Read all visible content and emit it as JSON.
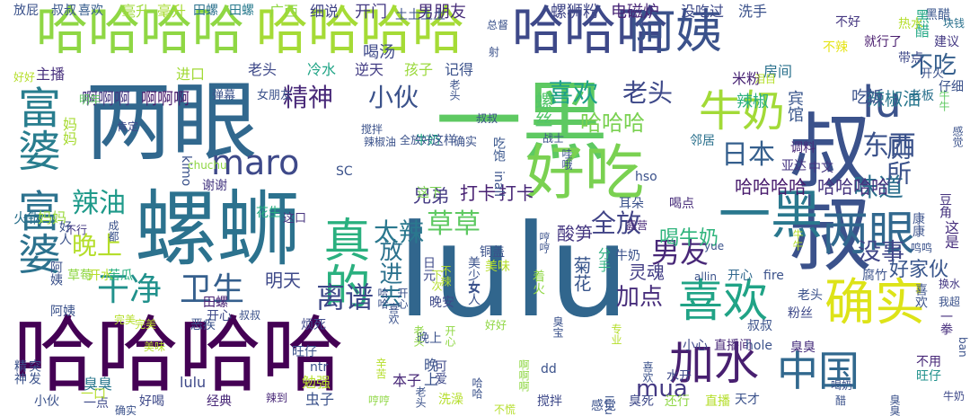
{
  "words": [
    {
      "text": "lulu",
      "color": "#31668d"
    },
    {
      "text": "哈哈哈哈",
      "color": "#440154"
    },
    {
      "text": "两眼",
      "color": "#31688e"
    },
    {
      "text": "一黑",
      "color": "#5ec962"
    },
    {
      "text": "叔叔",
      "color": "#3b528b"
    },
    {
      "text": "哈哈哈哈",
      "color": "#8fd744"
    },
    {
      "text": "哈哈哈哈",
      "color": "#a5db36"
    },
    {
      "text": "哈哈哈",
      "color": "#3e4989"
    },
    {
      "text": "阿姨",
      "color": "#3b528b"
    },
    {
      "text": "螺蛳",
      "color": "#2c728e"
    },
    {
      "text": "富婆",
      "color": "#287d8e"
    },
    {
      "text": "富婆",
      "color": "#2c728e"
    },
    {
      "text": "好吃",
      "color": "#7ad151"
    },
    {
      "text": "lu",
      "color": "#3b528b"
    },
    {
      "text": "一黑",
      "color": "#2a788e"
    },
    {
      "text": "两眼",
      "color": "#31688e"
    },
    {
      "text": "真的",
      "color": "#2ab07f"
    },
    {
      "text": "牛奶",
      "color": "#a2da37"
    },
    {
      "text": "确实",
      "color": "#dde318"
    },
    {
      "text": "喜欢",
      "color": "#20a386"
    },
    {
      "text": "加水",
      "color": "#481f70"
    },
    {
      "text": "中国",
      "color": "#31688e"
    },
    {
      "text": "maro",
      "color": "#3e4989"
    },
    {
      "text": "干净",
      "color": "#21918c"
    },
    {
      "text": "卫生",
      "color": "#355f8d"
    },
    {
      "text": "辣油",
      "color": "#1f9a8a"
    },
    {
      "text": "离谱",
      "color": "#3e4989"
    },
    {
      "text": "男友",
      "color": "#482878"
    },
    {
      "text": "草草",
      "color": "#5ec962"
    },
    {
      "text": "东西",
      "color": "#3b528b"
    },
    {
      "text": "日本",
      "color": "#355f8d"
    },
    {
      "text": "精神",
      "color": "#482878"
    },
    {
      "text": "小伙",
      "color": "#3b528b"
    },
    {
      "text": "喜欢",
      "color": "#1fa088"
    },
    {
      "text": "老头",
      "color": "#3e4989"
    },
    {
      "text": "味道",
      "color": "#2d708e"
    },
    {
      "text": "厕所",
      "color": "#3b528b"
    },
    {
      "text": "哈哈哈",
      "color": "#7ad151"
    },
    {
      "text": "太辣",
      "color": "#2a788e"
    },
    {
      "text": "晚上",
      "color": "#b5de2b"
    },
    {
      "text": "全放",
      "color": "#414487"
    },
    {
      "text": "放进去",
      "color": "#2c728e"
    },
    {
      "text": "mua",
      "color": "#443983"
    },
    {
      "text": "加点",
      "color": "#472d7b"
    },
    {
      "text": "没事",
      "color": "#404688"
    },
    {
      "text": "好家伙",
      "color": "#39568c"
    },
    {
      "text": "不吃",
      "color": "#355f8d"
    },
    {
      "text": "哈哈哈哈",
      "color": "#481b6d"
    },
    {
      "text": "哈哈哈哈",
      "color": "#46337e"
    },
    {
      "text": "打卡",
      "color": "#482173"
    },
    {
      "text": "打卡",
      "color": "#482878"
    },
    {
      "text": "喝牛奶",
      "color": "#2fb47c"
    },
    {
      "text": "酸笋",
      "color": "#453781"
    },
    {
      "text": "菊花",
      "color": "#39568c"
    },
    {
      "text": "灵魂",
      "color": "#433e85"
    },
    {
      "text": "明天",
      "color": "#3e4989"
    },
    {
      "text": "兄弟",
      "color": "#443a83"
    },
    {
      "text": "辣椒油",
      "color": "#2a788e"
    },
    {
      "text": "螺丝",
      "color": "#52c569"
    },
    {
      "text": "喝汤",
      "color": "#3e4989"
    },
    {
      "text": "开门",
      "color": "#443a83"
    },
    {
      "text": "男朋友",
      "color": "#472c7a"
    },
    {
      "text": "细说",
      "color": "#414487"
    },
    {
      "text": "广西",
      "color": "#8fd744"
    },
    {
      "text": "螺狮粉",
      "color": "#404688"
    },
    {
      "text": "电磁炉",
      "color": "#482677"
    },
    {
      "text": "没吃过",
      "color": "#3e4989"
    },
    {
      "text": "洗手",
      "color": "#3b528b"
    },
    {
      "text": "毫升",
      "color": "#9fda3a"
    },
    {
      "text": "毫升",
      "color": "#a8db34"
    },
    {
      "text": "喜欢",
      "color": "#365d8d"
    },
    {
      "text": "叔叔",
      "color": "#39568c"
    },
    {
      "text": "放屁",
      "color": "#3b528b"
    },
    {
      "text": "田螺",
      "color": "#2c728e"
    },
    {
      "text": "田螺",
      "color": "#297b8e"
    },
    {
      "text": "老头",
      "color": "#3e4989"
    },
    {
      "text": "冷水",
      "color": "#20a486"
    },
    {
      "text": "逆天",
      "color": "#433d84"
    },
    {
      "text": "孩子",
      "color": "#9bd93c"
    },
    {
      "text": "记得",
      "color": "#3b528b"
    },
    {
      "text": "主播",
      "color": "#472f7d"
    },
    {
      "text": "进口",
      "color": "#a2da37"
    },
    {
      "text": "啊啊啊",
      "color": "#453781"
    },
    {
      "text": "啊啊啊",
      "color": "#481b6d"
    },
    {
      "text": "米粉",
      "color": "#482374"
    },
    {
      "text": "辣椒",
      "color": "#2ab07f"
    },
    {
      "text": "房间",
      "color": "#2c728e"
    },
    {
      "text": "宾馆",
      "color": "#39568c"
    },
    {
      "text": "吃饭",
      "color": "#3b528b"
    },
    {
      "text": "建议",
      "color": "#443983"
    },
    {
      "text": "不辣",
      "color": "#e5e419"
    },
    {
      "text": "就行了",
      "color": "#481b6d"
    },
    {
      "text": "不好",
      "color": "#453781"
    },
    {
      "text": "黑醋",
      "color": "#39568c"
    },
    {
      "text": "黑醋",
      "color": "#22a785"
    },
    {
      "text": "带点",
      "color": "#3e4989"
    },
    {
      "text": "牛牛",
      "color": "#5ec962"
    },
    {
      "text": "开火",
      "color": "#3b528b"
    },
    {
      "text": "老板",
      "color": "#2c728e"
    },
    {
      "text": "弹幕",
      "color": "#3b528b"
    },
    {
      "text": "女朋友",
      "color": "#3b528b"
    },
    {
      "text": "邻居",
      "color": "#2c728e"
    },
    {
      "text": "调料",
      "color": "#482878"
    },
    {
      "text": "中文",
      "color": "#453781"
    },
    {
      "text": "亚达",
      "color": "#463480"
    },
    {
      "text": "这口",
      "color": "#46337e"
    },
    {
      "text": "花生",
      "color": "#27ad81"
    },
    {
      "text": "谢谢",
      "color": "#453781"
    },
    {
      "text": "不行",
      "color": "#443983"
    },
    {
      "text": "成都",
      "color": "#3b528b"
    },
    {
      "text": "火锅",
      "color": "#2c728e"
    },
    {
      "text": "妈妈",
      "color": "#9bd93c"
    },
    {
      "text": "妈妈",
      "color": "#a8db34"
    },
    {
      "text": "好好",
      "color": "#b5de2b"
    },
    {
      "text": "明年",
      "color": "#5ec962"
    },
    {
      "text": "肯定",
      "color": "#3e4989"
    },
    {
      "text": "吃饱",
      "color": "#39568c"
    },
    {
      "text": "牛奶",
      "color": "#22a785"
    },
    {
      "text": "这样",
      "color": "#3b528b"
    },
    {
      "text": "这下",
      "color": "#7ad151"
    },
    {
      "text": "hso",
      "color": "#3b528b"
    },
    {
      "text": "耳朵",
      "color": "#3b528b"
    },
    {
      "text": "喝点",
      "color": "#472c7a"
    },
    {
      "text": "牛奶",
      "color": "#3b528b"
    },
    {
      "text": "分手",
      "color": "#2ab07f"
    },
    {
      "text": "着火",
      "color": "#8fd744"
    },
    {
      "text": "腐竹",
      "color": "#3b528b"
    },
    {
      "text": "这是",
      "color": "#472f7d"
    },
    {
      "text": "换水",
      "color": "#443983"
    },
    {
      "text": "豆角",
      "color": "#46337e"
    },
    {
      "text": "块钱",
      "color": "#2c728e"
    },
    {
      "text": "仔细",
      "color": "#3b528b"
    },
    {
      "text": "开心",
      "color": "#31688e"
    },
    {
      "text": "fire",
      "color": "#3b528b"
    },
    {
      "text": "老头",
      "color": "#3b528b"
    },
    {
      "text": "喜欢",
      "color": "#3b528b"
    },
    {
      "text": "我超",
      "color": "#3b528b"
    },
    {
      "text": "一拳",
      "color": "#472f7d"
    },
    {
      "text": "粉丝",
      "color": "#3e4989"
    },
    {
      "text": "叔叔",
      "color": "#3b528b"
    },
    {
      "text": "小心",
      "color": "#3e4989"
    },
    {
      "text": "直播间",
      "color": "#482878"
    },
    {
      "text": "hole",
      "color": "#3b528b"
    },
    {
      "text": "臭臭",
      "color": "#472f7d"
    },
    {
      "text": "旺仔",
      "color": "#21918c"
    },
    {
      "text": "牛奶",
      "color": "#3e4989"
    },
    {
      "text": "不用",
      "color": "#482878"
    },
    {
      "text": "水开",
      "color": "#3e4989"
    },
    {
      "text": "ban",
      "color": "#3b528b"
    },
    {
      "text": "田螺",
      "color": "#482173"
    },
    {
      "text": "开心",
      "color": "#3e4989"
    },
    {
      "text": "叔叔",
      "color": "#3b528b"
    },
    {
      "text": "烦死",
      "color": "#3e4989"
    },
    {
      "text": "旺仔",
      "color": "#3b528b"
    },
    {
      "text": "ntr",
      "color": "#3b528b"
    },
    {
      "text": "勉强",
      "color": "#b5de2b"
    },
    {
      "text": "虫子",
      "color": "#3b528b"
    },
    {
      "text": "本子",
      "color": "#482878"
    },
    {
      "text": "臭臭",
      "color": "#2a788e"
    },
    {
      "text": "lulu",
      "color": "#3e4989"
    },
    {
      "text": "经典",
      "color": "#482878"
    },
    {
      "text": "一点",
      "color": "#3e4989"
    },
    {
      "text": "一口",
      "color": "#b5de2b"
    },
    {
      "text": "好喝",
      "color": "#3e4989"
    },
    {
      "text": "洗澡",
      "color": "#b5de2b"
    },
    {
      "text": "搅拌",
      "color": "#3e4989"
    },
    {
      "text": "感觉",
      "color": "#3b528b"
    },
    {
      "text": "臭死",
      "color": "#3e4989"
    },
    {
      "text": "还行",
      "color": "#8fd744"
    },
    {
      "text": "直播",
      "color": "#b5de2b"
    },
    {
      "text": "天才",
      "color": "#3b528b"
    },
    {
      "text": "小伙",
      "color": "#3b528b"
    },
    {
      "text": "精神",
      "color": "#3b528b"
    },
    {
      "text": "突发",
      "color": "#3b528b"
    },
    {
      "text": "恶疾",
      "color": "#3b528b"
    },
    {
      "text": "辣到",
      "color": "#482878"
    },
    {
      "text": "好人",
      "color": "#3b528b"
    },
    {
      "text": "阿姨",
      "color": "#3b528b"
    },
    {
      "text": "阿姨",
      "color": "#3b528b"
    },
    {
      "text": "草莓",
      "color": "#8fd744"
    },
    {
      "text": "开水",
      "color": "#b5de2b"
    },
    {
      "text": "苦瓜",
      "color": "#2ab07f"
    },
    {
      "text": "完美",
      "color": "#b5de2b"
    },
    {
      "text": "完美",
      "color": "#b5de2b"
    },
    {
      "text": "美味",
      "color": "#b5de2b"
    },
    {
      "text": "美味",
      "color": "#b5de2b"
    },
    {
      "text": "铜盖",
      "color": "#3b528b"
    },
    {
      "text": "女人",
      "color": "#3b528b"
    },
    {
      "text": "美少女",
      "color": "#3b528b"
    },
    {
      "text": "晚安",
      "color": "#3e4989"
    },
    {
      "text": "日元",
      "color": "#3e4989"
    },
    {
      "text": "可爱",
      "color": "#3e4989"
    },
    {
      "text": "晚上",
      "color": "#3b528b"
    },
    {
      "text": "晚上",
      "color": "#3b528b"
    },
    {
      "text": "确实",
      "color": "#3b528b"
    },
    {
      "text": "确实",
      "color": "#3b528b"
    },
    {
      "text": "露营",
      "color": "#482878"
    },
    {
      "text": "康康",
      "color": "#3b528b"
    },
    {
      "text": "yue",
      "color": "#3b528b"
    },
    {
      "text": "dd",
      "color": "#3b528b"
    },
    {
      "text": "allin",
      "color": "#3b528b"
    },
    {
      "text": "inall",
      "color": "#3b528b"
    },
    {
      "text": "kimo",
      "color": "#3b528b"
    },
    {
      "text": "chuchu",
      "color": "#8fd744"
    },
    {
      "text": "SC",
      "color": "#3b528b"
    },
    {
      "text": "搅拌",
      "color": "#3b528b"
    },
    {
      "text": "辣椒油",
      "color": "#3b528b"
    },
    {
      "text": "全放好",
      "color": "#3b528b"
    },
    {
      "text": "土土土土",
      "color": "#3b528b"
    },
    {
      "text": "好好",
      "color": "#8fd744"
    },
    {
      "text": "哼哼",
      "color": "#8fd744"
    },
    {
      "text": "啊啊啊",
      "color": "#8fd744"
    },
    {
      "text": "辛苦",
      "color": "#b5de2b"
    },
    {
      "text": "专业",
      "color": "#b5de2b"
    },
    {
      "text": "不慌",
      "color": "#b5de2b"
    },
    {
      "text": "热水",
      "color": "#b5de2b"
    },
    {
      "text": "泪目",
      "color": "#b5de2b"
    },
    {
      "text": "牛牛",
      "color": "#b5de2b"
    },
    {
      "text": "鸣鸣",
      "color": "#3b528b"
    },
    {
      "text": "战士",
      "color": "#3b528b"
    },
    {
      "text": "射",
      "color": "#3b528b"
    },
    {
      "text": "总督",
      "color": "#3b528b"
    },
    {
      "text": "下次",
      "color": "#b5de2b"
    },
    {
      "text": "不辣",
      "color": "#b5de2b"
    },
    {
      "text": "老头",
      "color": "#8fd744"
    },
    {
      "text": "开心",
      "color": "#8fd744"
    },
    {
      "text": "老头",
      "color": "#3b528b"
    },
    {
      "text": "叔叔",
      "color": "#3b528b"
    },
    {
      "text": "哼哼",
      "color": "#3b528b"
    },
    {
      "text": "哇哦",
      "color": "#3b528b"
    },
    {
      "text": "喜欢",
      "color": "#3b528b"
    },
    {
      "text": "开心",
      "color": "#3b528b"
    },
    {
      "text": "老头",
      "color": "#3b528b"
    },
    {
      "text": "臭宝",
      "color": "#3b528b"
    },
    {
      "text": "哈哈",
      "color": "#3b528b"
    },
    {
      "text": "哈哈",
      "color": "#3b528b"
    },
    {
      "text": "lulu",
      "color": "#3b528b"
    },
    {
      "text": "喜欢",
      "color": "#3b528b"
    },
    {
      "text": "感觉",
      "color": "#3b528b"
    },
    {
      "text": "臭臭",
      "color": "#3b528b"
    },
    {
      "text": "喝奶",
      "color": "#3b528b"
    },
    {
      "text": "醋",
      "color": "#3b528b"
    },
    {
      "text": "萝卜",
      "color": "#3b528b"
    },
    {
      "text": "哟",
      "color": "#3b528b"
    }
  ]
}
